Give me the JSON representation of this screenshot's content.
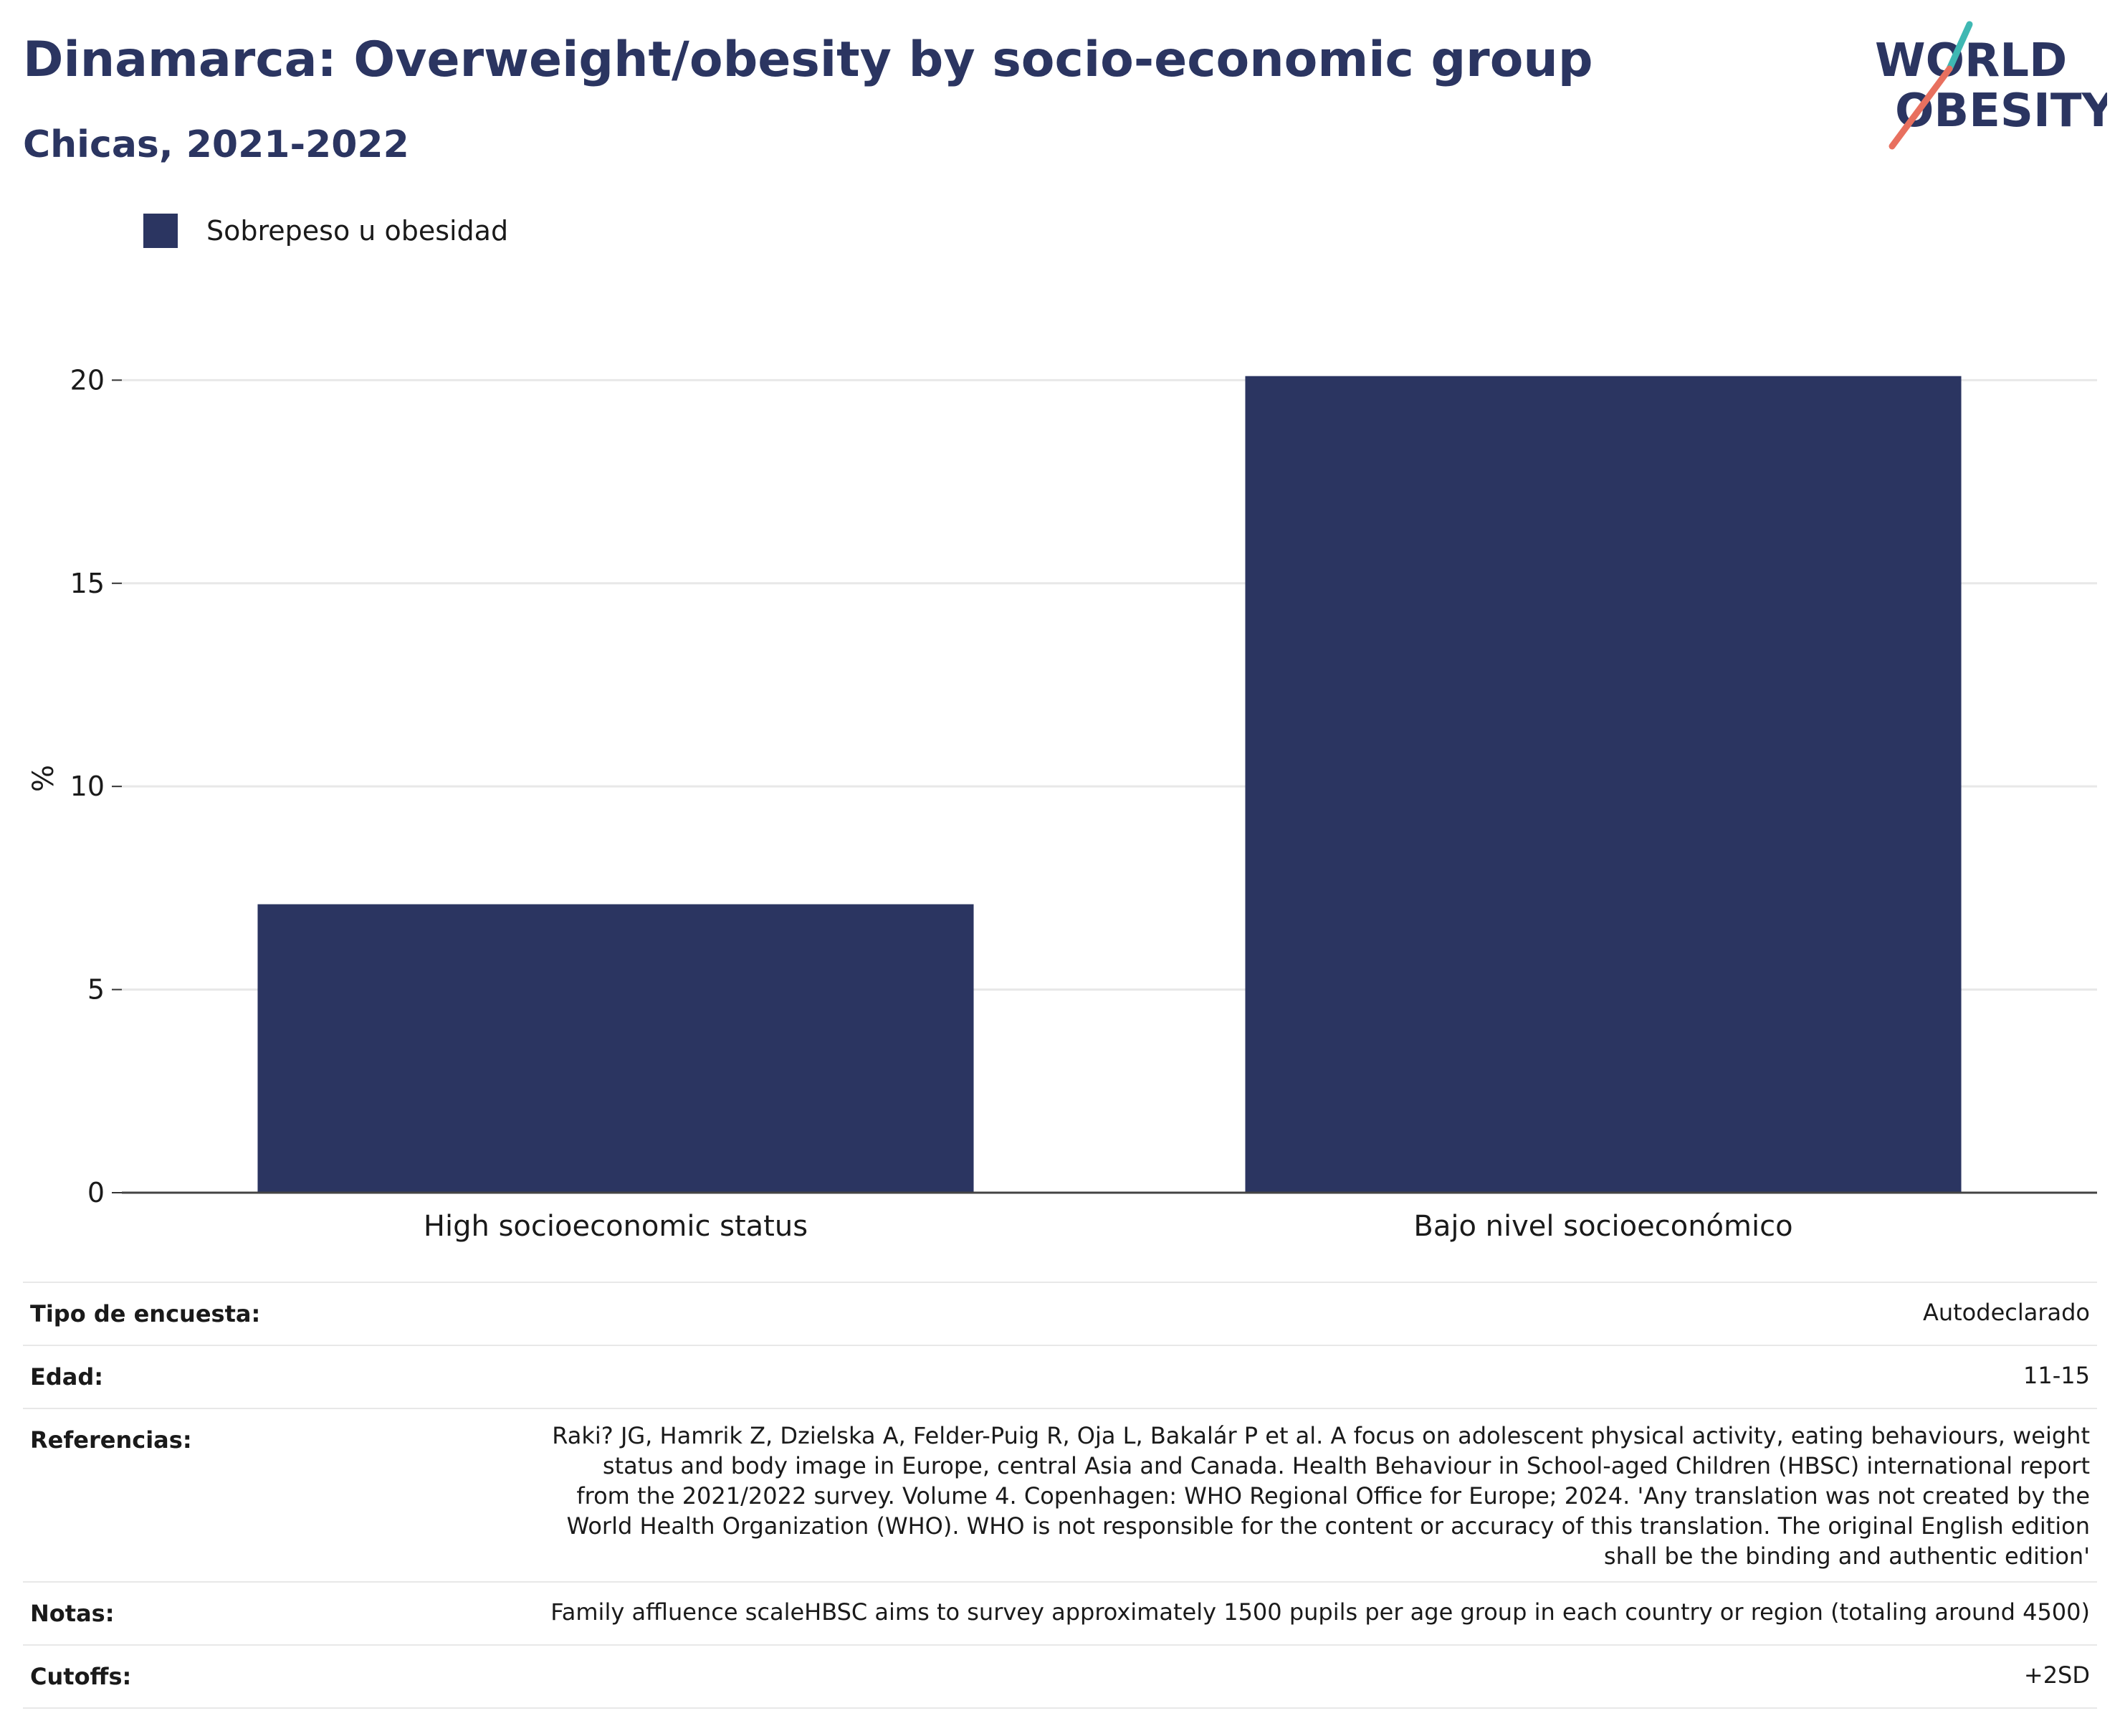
{
  "title": "Dinamarca: Overweight/obesity by socio-economic group",
  "subtitle": "Chicas, 2021-2022",
  "logo": {
    "line1": "WORLD",
    "line2": "OBESITY",
    "colors": {
      "text": "#2b3561",
      "slash_top": "#3fb8b3",
      "slash_bottom": "#e8705f"
    }
  },
  "legend": {
    "label": "Sobrepeso u obesidad",
    "color": "#2b3561"
  },
  "chart_data": {
    "type": "bar",
    "categories": [
      "High socioeconomic status",
      "Bajo nivel socioeconómico"
    ],
    "series": [
      {
        "name": "Sobrepeso u obesidad",
        "values": [
          7.1,
          20.1
        ],
        "color": "#2b3561"
      }
    ],
    "ylabel": "%",
    "xlabel": "",
    "ylim": [
      0,
      22.3
    ],
    "yticks": [
      0,
      5,
      10,
      15,
      20
    ],
    "grid": true,
    "legend_position": "top-left"
  },
  "meta": [
    {
      "key": "Tipo de encuesta:",
      "value": "Autodeclarado"
    },
    {
      "key": "Edad:",
      "value": "11-15"
    },
    {
      "key": "Referencias:",
      "value": "Raki? JG, Hamrik Z, Dzielska A, Felder-Puig R, Oja L, Bakalár P et al. A focus on adolescent physical activity, eating behaviours, weight status and body image in Europe, central Asia and Canada. Health Behaviour in School-aged Children (HBSC) international report from the 2021/2022 survey. Volume 4. Copenhagen: WHO Regional Office for Europe; 2024. 'Any translation was not created by the World Health Organization (WHO). WHO is not responsible for the content or accuracy of this translation. The original English edition shall be the binding and authentic edition'"
    },
    {
      "key": "Notas:",
      "value": "Family affluence scaleHBSC aims to survey approximately 1500 pupils per age group in each country or region (totaling around 4500)"
    },
    {
      "key": "Cutoffs:",
      "value": "+2SD"
    }
  ]
}
